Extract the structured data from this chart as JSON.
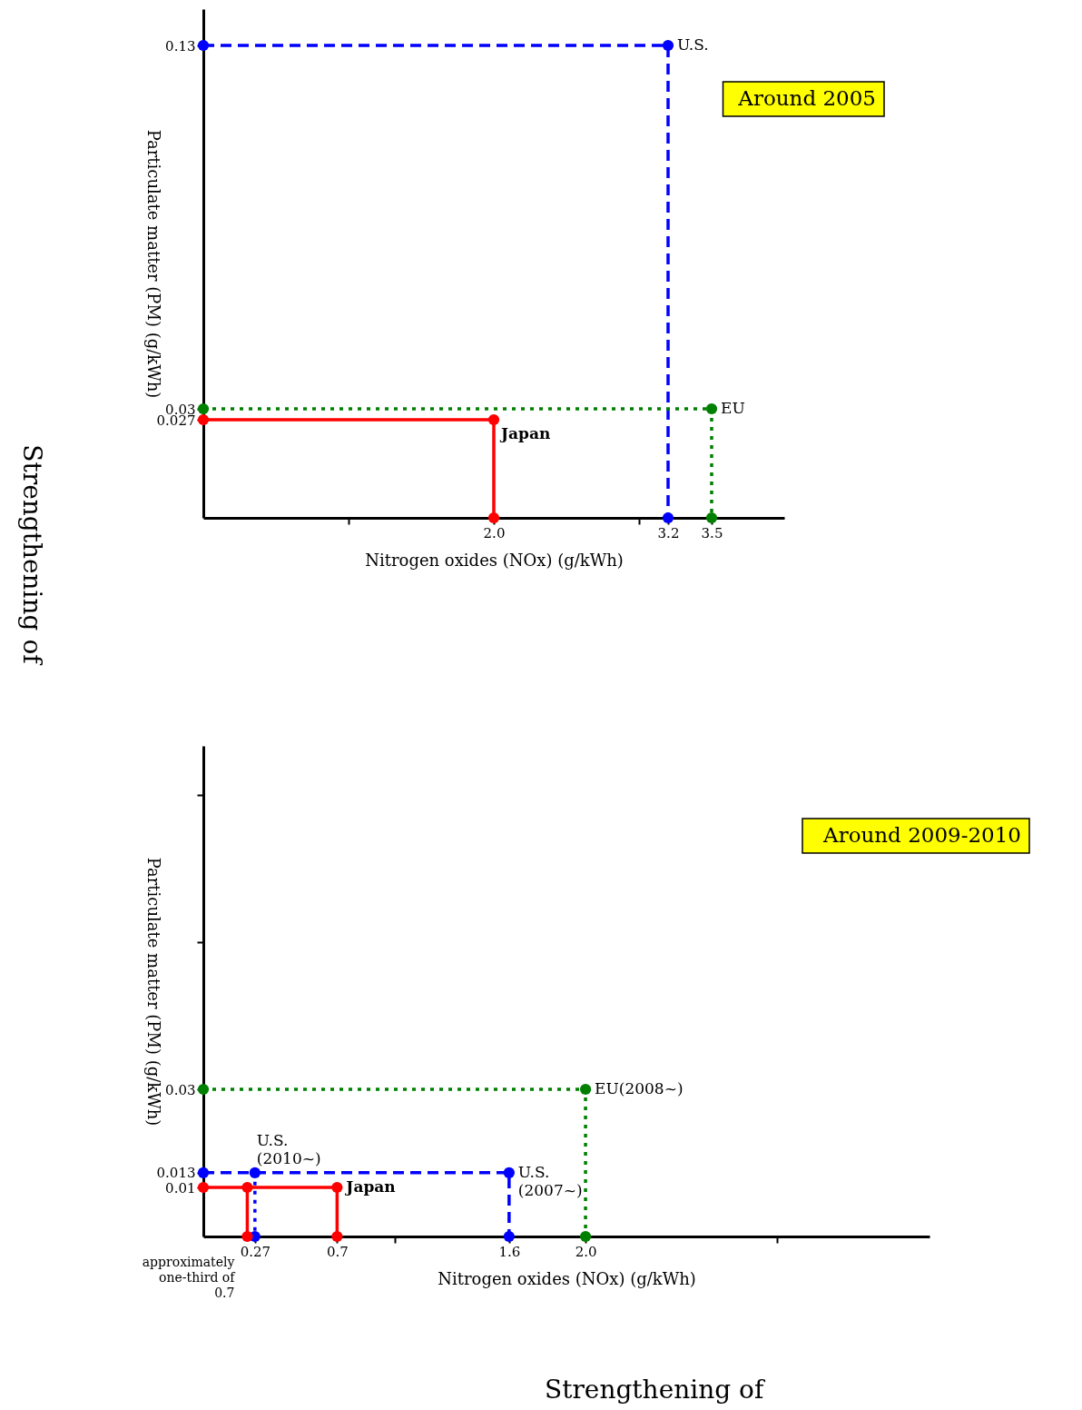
{
  "chart_data": [
    {
      "type": "line",
      "title": "Around 2005",
      "xlabel": "Nitrogen oxides (NOx) (g/kWh)",
      "ylabel": "Particulate matter (PM) (g/kWh)",
      "marker": "circle",
      "xlim": [
        0,
        4.0
      ],
      "ylim": [
        0,
        0.14
      ],
      "xticks": [
        {
          "value": 1.0,
          "label": null
        },
        {
          "value": 2.0,
          "label": "2.0"
        },
        {
          "value": 3.0,
          "label": null
        },
        3.2,
        3.5
      ],
      "yticks": [
        0.027,
        0.03,
        0.13
      ],
      "series": [
        {
          "name": "U.S.",
          "color": "#0000ff",
          "line_style": "dashed",
          "x": [
            0,
            3.2,
            3.2
          ],
          "values": [
            0.13,
            0.13,
            0
          ]
        },
        {
          "name": "EU",
          "color": "#008000",
          "line_style": "dotted",
          "x": [
            0,
            3.5,
            3.5
          ],
          "values": [
            0.03,
            0.03,
            0
          ]
        },
        {
          "name": "Japan",
          "color": "#ff0000",
          "line_style": "solid",
          "x": [
            0,
            2.0,
            2.0
          ],
          "values": [
            0.027,
            0.027,
            0
          ]
        }
      ],
      "annotations": [
        "Strengthening of"
      ]
    },
    {
      "type": "line",
      "title": "Around 2009-2010",
      "xlabel": "Nitrogen oxides (NOx) (g/kWh)",
      "ylabel": "Particulate matter (PM) (g/kWh)",
      "marker": "circle",
      "xlim": [
        0,
        3.8
      ],
      "ylim": [
        0,
        0.1
      ],
      "xticks": [
        0.27,
        0.7,
        {
          "value": 1.0,
          "label": null
        },
        1.6,
        {
          "value": 2.0,
          "label": "2.0"
        },
        {
          "value": 3.0,
          "label": null
        }
      ],
      "yticks": [
        0.01,
        0.013,
        0.03,
        {
          "value": 0.06,
          "label": null
        },
        {
          "value": 0.09,
          "label": null
        }
      ],
      "series": [
        {
          "name": "EU(2008~)",
          "color": "#008000",
          "line_style": "dotted",
          "x": [
            0,
            2.0,
            2.0
          ],
          "values": [
            0.03,
            0.03,
            0
          ]
        },
        {
          "name": "U.S.\n(2007~)",
          "color": "#0000ff",
          "line_style": "dashed",
          "x": [
            0,
            1.6,
            1.6
          ],
          "values": [
            0.013,
            0.013,
            0
          ]
        },
        {
          "name": "U.S.\n(2010~)",
          "color": "#0000ff",
          "line_style": "dotted",
          "x": [
            0.27,
            0.27
          ],
          "values": [
            0.013,
            0
          ]
        },
        {
          "name": "Japan",
          "color": "#ff0000",
          "line_style": "solid",
          "x": [
            0,
            0.7,
            0.7
          ],
          "values": [
            0.01,
            0.01,
            0
          ]
        },
        {
          "color": "#ff0000",
          "line_style": "solid",
          "x": [
            0.23,
            0.23
          ],
          "values": [
            0.01,
            0
          ]
        }
      ],
      "annotations": [
        {
          "text": "approximately one-third of 0.7",
          "x": 0.23,
          "y": 0
        },
        "Strengthening of"
      ]
    }
  ]
}
